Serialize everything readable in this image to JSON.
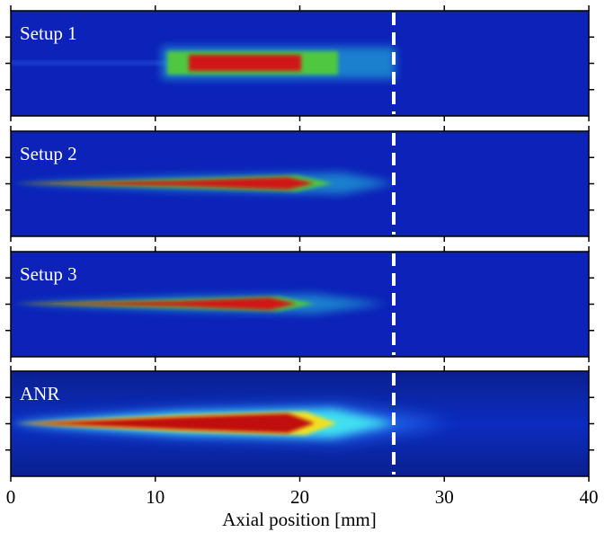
{
  "chart_data": {
    "type": "image-panels",
    "panels": [
      "Setup 1",
      "Setup 2",
      "Setup 3",
      "ANR"
    ],
    "xlabel": "Axial position [mm]",
    "xlim": [
      0,
      40
    ],
    "xticks": [
      0,
      10,
      20,
      30,
      40
    ],
    "vline": 26.5
  }
}
